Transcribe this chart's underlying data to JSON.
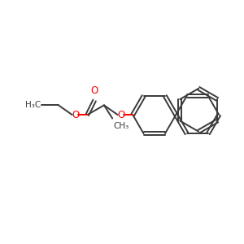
{
  "bg_color": "#ffffff",
  "bond_color": "#3a3a3a",
  "oxygen_color": "#ff0000",
  "line_width": 1.4,
  "fig_size": [
    3.0,
    3.0
  ],
  "dpi": 100,
  "font_size_label": 8.5,
  "font_size_small": 7.5,
  "xlim": [
    0,
    10
  ],
  "ylim": [
    0,
    10
  ]
}
